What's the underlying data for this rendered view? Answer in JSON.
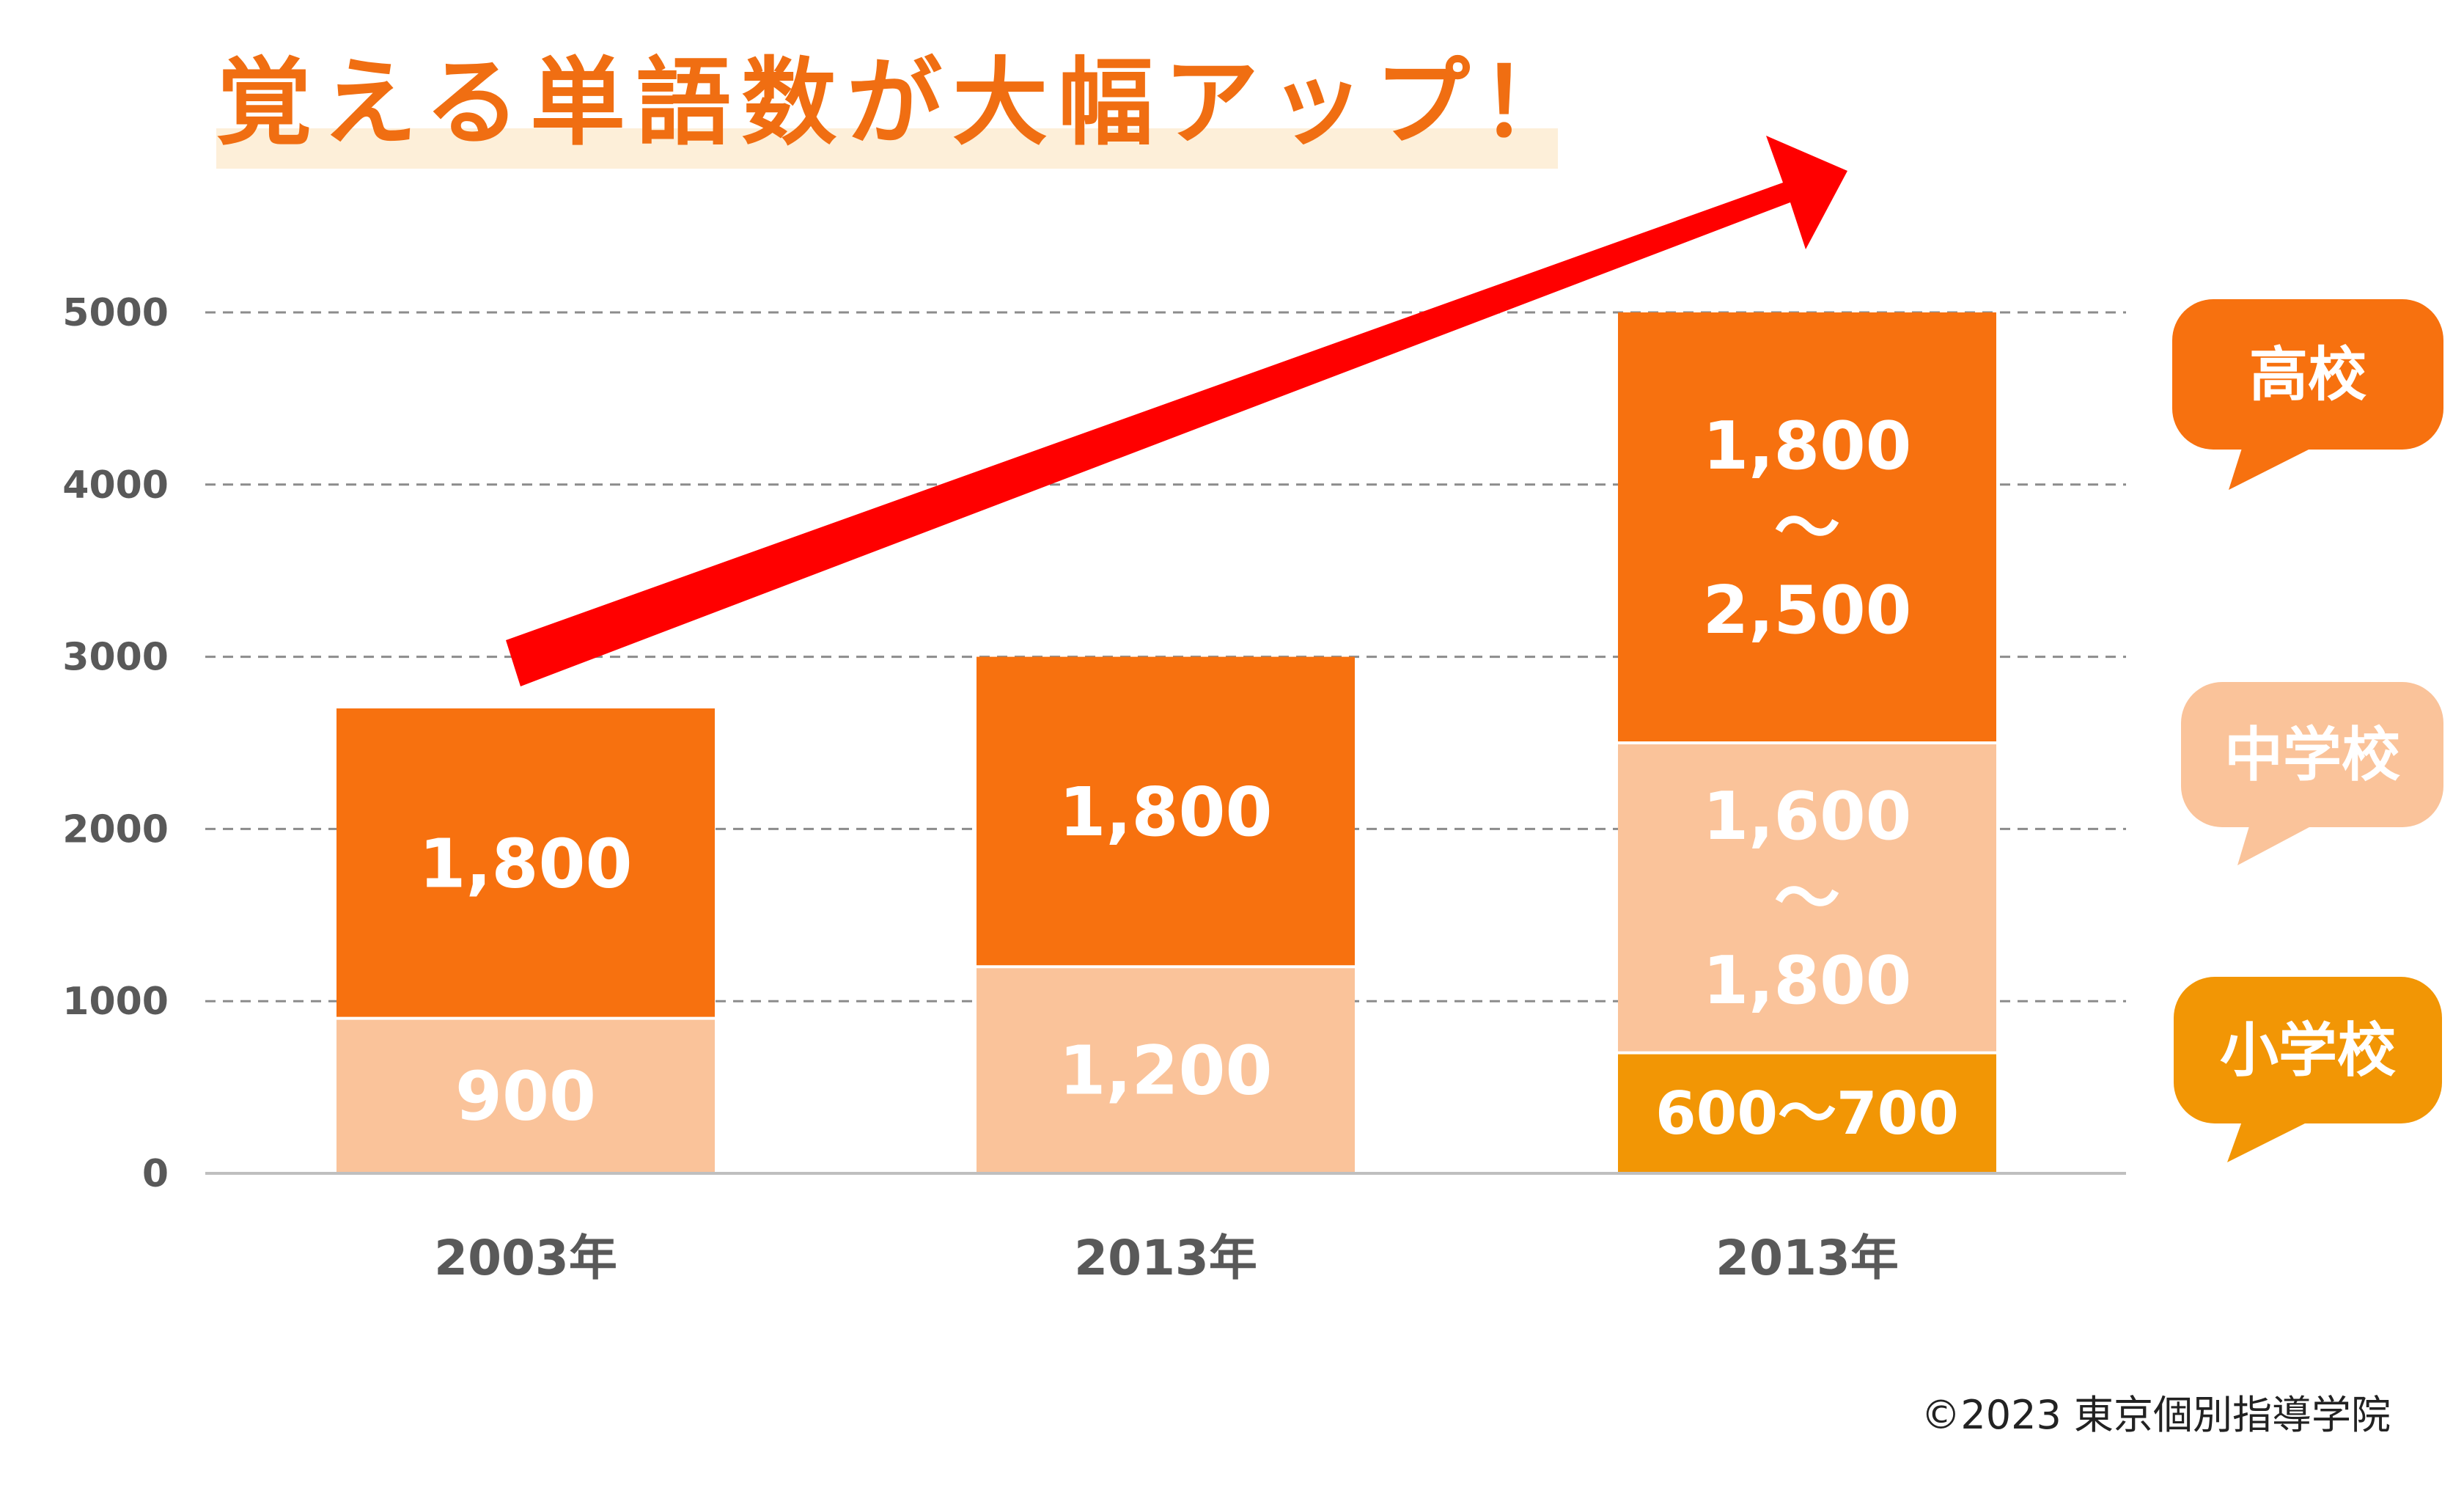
{
  "title": "覚える単語数が大幅アップ！",
  "copyright": "©2023 東京個別指導学院",
  "colors": {
    "title": "#F06E12",
    "title_highlight": "#FDEFD9",
    "high_school": "#F7710F",
    "junior_high": "#FAC39A",
    "elementary": "#F29605",
    "arrow": "#FF0000",
    "axis_text": "#595959",
    "grid": "#8C8C8C",
    "bar_text": "#FFFFFF"
  },
  "chart_data": {
    "type": "bar",
    "stacked": true,
    "categories": [
      "2003年",
      "2013年",
      "2013年"
    ],
    "series": [
      {
        "name": "小学校",
        "key": "elementary",
        "values": [
          0,
          0,
          700
        ],
        "labels": [
          "",
          "",
          "600〜700"
        ]
      },
      {
        "name": "中学校",
        "key": "junior_high",
        "values": [
          900,
          1200,
          1800
        ],
        "labels": [
          "900",
          "1,200",
          "1,600\n〜\n1,800"
        ]
      },
      {
        "name": "高校",
        "key": "high_school",
        "values": [
          1800,
          1800,
          2500
        ],
        "labels": [
          "1,800",
          "1,800",
          "1,800\n〜\n2,500"
        ]
      }
    ],
    "yticks": [
      "0",
      "1000",
      "2000",
      "3000",
      "4000",
      "5000"
    ],
    "ylim": [
      0,
      5000
    ],
    "grid": true,
    "legend": {
      "placement": "right",
      "style": "speech-bubbles"
    },
    "annotation": "rising-arrow"
  }
}
